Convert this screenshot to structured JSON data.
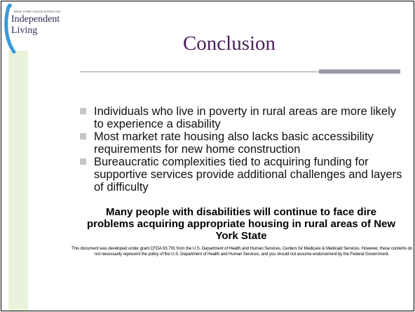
{
  "logo": {
    "tagline": "NEW YORK ASSOCIATION ON",
    "name_line1": "Independent",
    "name_line2": "Living"
  },
  "title": "Conclusion",
  "bullets": [
    "Individuals who live in poverty in rural areas are more likely to experience a disability",
    "Most market rate housing also lacks basic accessibility requirements for new home construction",
    "Bureaucratic complexities tied to acquiring funding for supportive services provide additional challenges and layers of difficulty"
  ],
  "closing": "Many people with disabilities will continue to face dire problems acquiring appropriate housing in rural areas of New York State",
  "footnote": "This document was developed under grant CFDA 93.791 from the U.S. Department of Health and Human Services, Centers for Medicare & Medicaid Services. However, these contents do not necessarily represent the policy of the U.S. Department of Health and Human Services, and you should not assume endorsement by the Federal Government."
}
